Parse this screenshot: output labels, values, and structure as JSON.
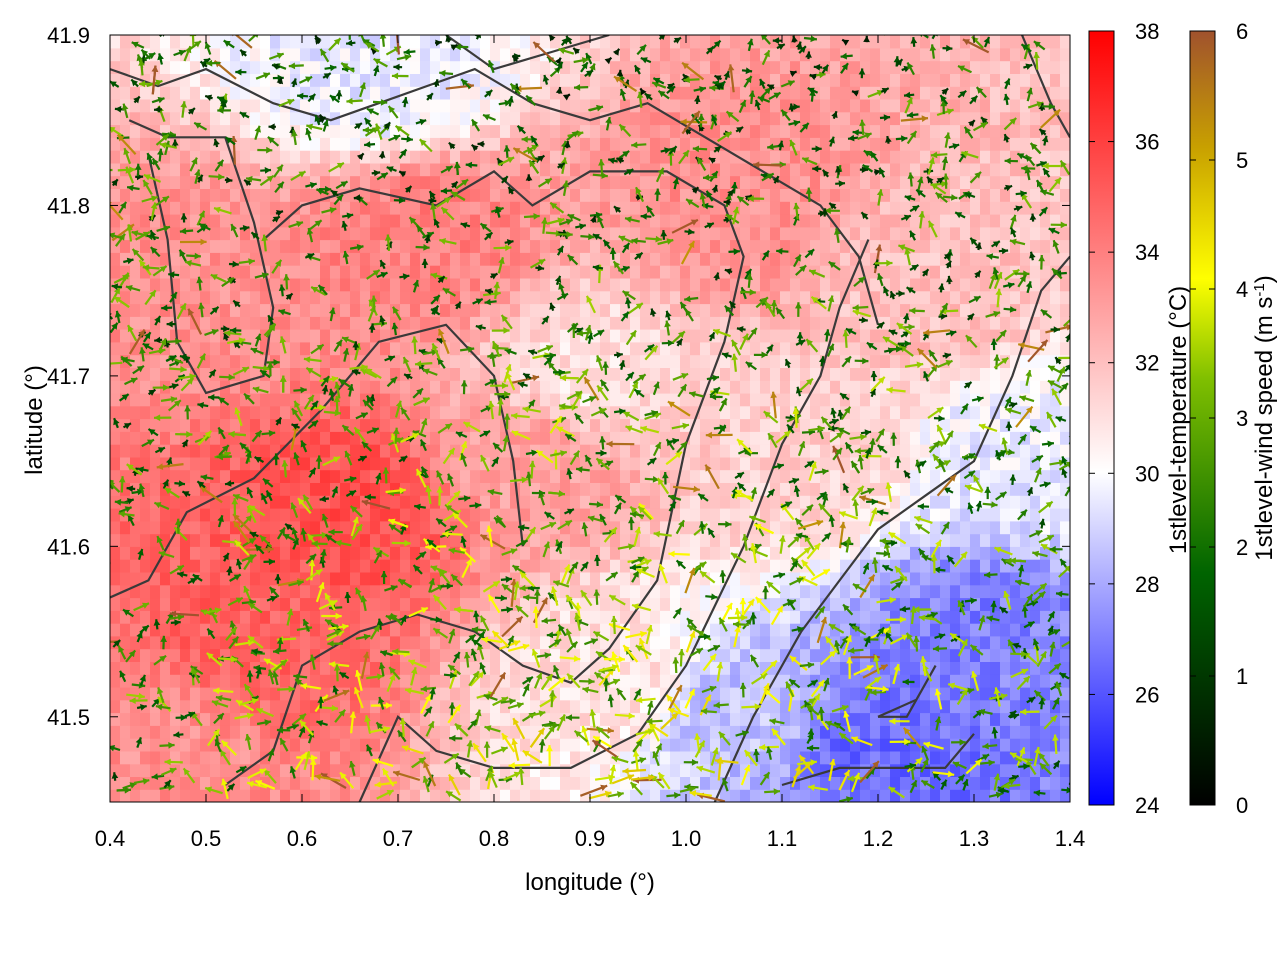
{
  "chart_data": {
    "type": "heatmap",
    "title": "",
    "xlabel": "longitude (°)",
    "ylabel": "latitude (°)",
    "xlim": [
      0.4,
      1.4
    ],
    "ylim": [
      41.45,
      41.9
    ],
    "xticks": [
      "0.4",
      "0.5",
      "0.6",
      "0.7",
      "0.8",
      "0.9",
      "1.0",
      "1.1",
      "1.2",
      "1.3",
      "1.4"
    ],
    "yticks": [
      "41.5",
      "41.6",
      "41.7",
      "41.8",
      "41.9"
    ],
    "grid": false,
    "temperature_colorbar": {
      "label": "1stlevel-temperature (°C)",
      "range": [
        24,
        38
      ],
      "ticks": [
        "24",
        "26",
        "28",
        "30",
        "32",
        "34",
        "36",
        "38"
      ],
      "colors": [
        "#0000ff",
        "#ffffff",
        "#ff0000"
      ]
    },
    "wind_colorbar": {
      "label_main": "1stlevel-wind speed (m s",
      "label_sup": "-1",
      "label_end": ")",
      "range": [
        0,
        6
      ],
      "ticks": [
        "0",
        "1",
        "2",
        "3",
        "4",
        "5",
        "6"
      ],
      "colors": [
        "#000000",
        "#006400",
        "#7fbf00",
        "#ffff00",
        "#c8a000",
        "#a0522d"
      ]
    },
    "temperature_regions": [
      {
        "lon": 0.65,
        "lat": 41.62,
        "temp": 35.5
      },
      {
        "lon": 0.55,
        "lat": 41.55,
        "temp": 35.0
      },
      {
        "lon": 0.5,
        "lat": 41.75,
        "temp": 33.5
      },
      {
        "lon": 0.72,
        "lat": 41.78,
        "temp": 34.0
      },
      {
        "lon": 0.85,
        "lat": 41.65,
        "temp": 33.0
      },
      {
        "lon": 0.9,
        "lat": 41.7,
        "temp": 31.0
      },
      {
        "lon": 1.05,
        "lat": 41.8,
        "temp": 33.5
      },
      {
        "lon": 1.25,
        "lat": 41.75,
        "temp": 32.0
      },
      {
        "lon": 1.3,
        "lat": 41.55,
        "temp": 27.0
      },
      {
        "lon": 1.2,
        "lat": 41.48,
        "temp": 26.5
      },
      {
        "lon": 1.05,
        "lat": 41.5,
        "temp": 28.5
      },
      {
        "lon": 1.35,
        "lat": 41.65,
        "temp": 29.5
      },
      {
        "lon": 0.68,
        "lat": 41.88,
        "temp": 29.5
      },
      {
        "lon": 0.45,
        "lat": 41.48,
        "temp": 33.5
      },
      {
        "lon": 0.92,
        "lat": 41.52,
        "temp": 31.0
      },
      {
        "lon": 1.12,
        "lat": 41.65,
        "temp": 31.5
      }
    ],
    "contours": [
      [
        [
          0.4,
          41.57
        ],
        [
          0.44,
          41.58
        ],
        [
          0.48,
          41.62
        ],
        [
          0.55,
          41.64
        ],
        [
          0.62,
          41.68
        ],
        [
          0.68,
          41.72
        ],
        [
          0.75,
          41.73
        ],
        [
          0.8,
          41.7
        ],
        [
          0.82,
          41.65
        ],
        [
          0.83,
          41.6
        ]
      ],
      [
        [
          0.52,
          41.46
        ],
        [
          0.57,
          41.48
        ],
        [
          0.6,
          41.53
        ],
        [
          0.66,
          41.55
        ],
        [
          0.72,
          41.56
        ],
        [
          0.78,
          41.55
        ],
        [
          0.83,
          41.53
        ],
        [
          0.88,
          41.52
        ],
        [
          0.92,
          41.54
        ],
        [
          0.97,
          41.58
        ],
        [
          1.0,
          41.66
        ],
        [
          1.04,
          41.72
        ],
        [
          1.06,
          41.77
        ],
        [
          1.04,
          41.8
        ],
        [
          0.98,
          41.82
        ],
        [
          0.9,
          41.82
        ],
        [
          0.84,
          41.8
        ],
        [
          0.8,
          41.82
        ],
        [
          0.74,
          41.8
        ],
        [
          0.66,
          41.81
        ],
        [
          0.6,
          41.8
        ],
        [
          0.56,
          41.78
        ]
      ],
      [
        [
          0.42,
          41.85
        ],
        [
          0.46,
          41.84
        ],
        [
          0.52,
          41.84
        ],
        [
          0.55,
          41.79
        ],
        [
          0.57,
          41.74
        ],
        [
          0.56,
          41.7
        ],
        [
          0.5,
          41.69
        ],
        [
          0.47,
          41.72
        ],
        [
          0.46,
          41.78
        ],
        [
          0.44,
          41.83
        ]
      ],
      [
        [
          0.4,
          41.88
        ],
        [
          0.45,
          41.87
        ],
        [
          0.5,
          41.88
        ],
        [
          0.57,
          41.86
        ],
        [
          0.63,
          41.85
        ],
        [
          0.68,
          41.86
        ],
        [
          0.73,
          41.87
        ],
        [
          0.78,
          41.88
        ],
        [
          0.84,
          41.86
        ],
        [
          0.9,
          41.85
        ],
        [
          0.96,
          41.86
        ],
        [
          1.02,
          41.84
        ],
        [
          1.08,
          41.82
        ],
        [
          1.14,
          41.8
        ],
        [
          1.18,
          41.77
        ],
        [
          1.2,
          41.73
        ]
      ],
      [
        [
          0.66,
          41.45
        ],
        [
          0.7,
          41.5
        ],
        [
          0.74,
          41.48
        ],
        [
          0.8,
          41.47
        ],
        [
          0.88,
          41.47
        ],
        [
          0.95,
          41.49
        ],
        [
          1.0,
          41.53
        ],
        [
          1.06,
          41.6
        ],
        [
          1.1,
          41.66
        ],
        [
          1.14,
          41.7
        ],
        [
          1.16,
          41.74
        ],
        [
          1.19,
          41.78
        ]
      ],
      [
        [
          1.03,
          41.45
        ],
        [
          1.07,
          41.5
        ],
        [
          1.12,
          41.55
        ],
        [
          1.16,
          41.58
        ],
        [
          1.2,
          41.61
        ],
        [
          1.25,
          41.63
        ],
        [
          1.3,
          41.65
        ],
        [
          1.34,
          41.7
        ],
        [
          1.37,
          41.75
        ],
        [
          1.4,
          41.77
        ]
      ],
      [
        [
          1.1,
          41.46
        ],
        [
          1.16,
          41.47
        ],
        [
          1.22,
          41.47
        ],
        [
          1.27,
          41.47
        ],
        [
          1.3,
          41.49
        ]
      ],
      [
        [
          1.2,
          41.5
        ],
        [
          1.24,
          41.51
        ],
        [
          1.26,
          41.53
        ],
        [
          1.23,
          41.5
        ],
        [
          1.2,
          41.5
        ]
      ],
      [
        [
          0.75,
          41.9
        ],
        [
          0.8,
          41.88
        ],
        [
          0.86,
          41.89
        ],
        [
          0.92,
          41.9
        ]
      ],
      [
        [
          1.35,
          41.9
        ],
        [
          1.38,
          41.86
        ],
        [
          1.4,
          41.84
        ]
      ]
    ],
    "wind_arrow_count": 2200,
    "wind_speed_range": [
      0,
      6
    ]
  }
}
